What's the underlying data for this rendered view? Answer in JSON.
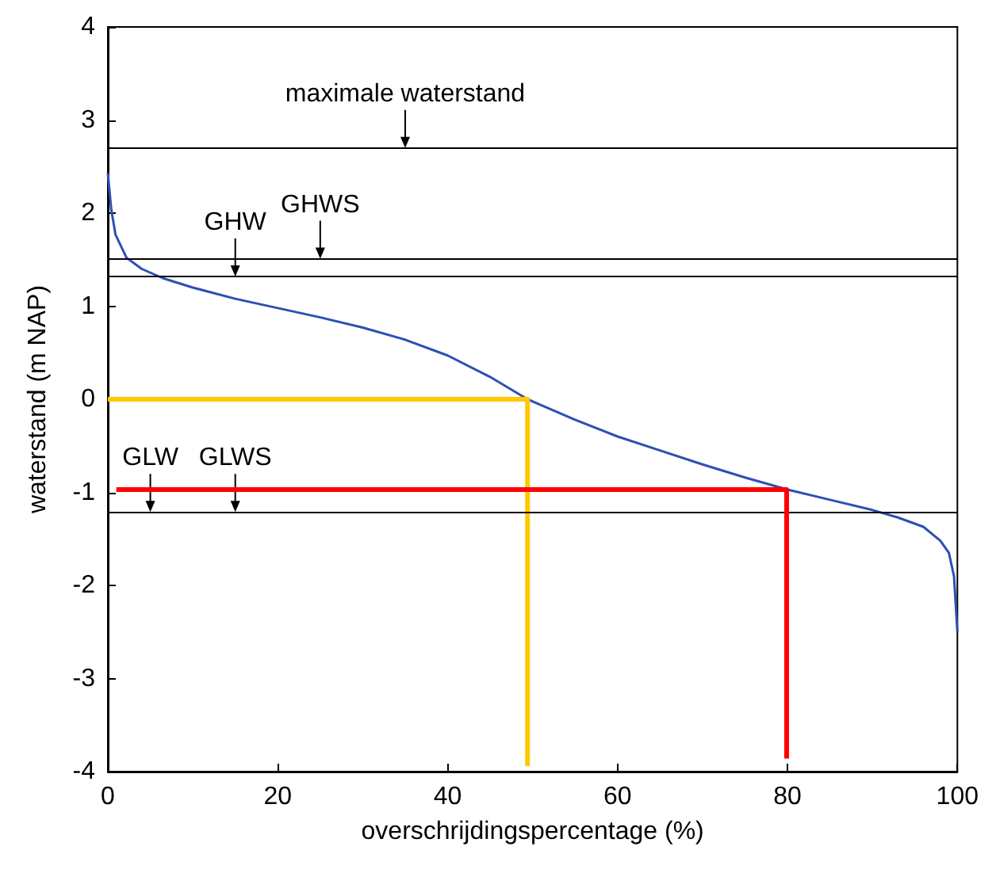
{
  "chart_data": {
    "type": "line",
    "xlabel": "overschrijdingspercentage (%)",
    "ylabel": "waterstand (m NAP)",
    "xlim": [
      0,
      100
    ],
    "xticks": [
      0,
      20,
      40,
      60,
      80,
      100
    ],
    "ylim": [
      -4,
      4
    ],
    "yticks": [
      -4,
      -3,
      -2,
      -1,
      0,
      1,
      2,
      3,
      4
    ],
    "grid": false,
    "marker": "none",
    "line_style": "solid",
    "series": [
      {
        "color": "#2d4fb4",
        "x": [
          0,
          0.4,
          0.9,
          2.2,
          4,
          6.5,
          10,
          15,
          20,
          25,
          30,
          35,
          40,
          45,
          49.4,
          55,
          60,
          65,
          70,
          75,
          80,
          85,
          90,
          93,
          96,
          98,
          99,
          99.6,
          100
        ],
        "values": [
          2.43,
          2.04,
          1.77,
          1.52,
          1.4,
          1.3,
          1.2,
          1.08,
          0.98,
          0.88,
          0.77,
          0.64,
          0.47,
          0.24,
          0.0,
          -0.22,
          -0.4,
          -0.55,
          -0.7,
          -0.84,
          -0.97,
          -1.08,
          -1.19,
          -1.27,
          -1.37,
          -1.52,
          -1.65,
          -1.9,
          -2.5
        ]
      },
      {
        "color": "#ffc800",
        "x": [
          0,
          49.4,
          49.4
        ],
        "values": [
          0,
          0,
          -3.94
        ]
      },
      {
        "color": "#ff0000",
        "x": [
          1,
          79.9,
          79.9
        ],
        "values": [
          -0.97,
          -0.97,
          -3.86
        ]
      }
    ],
    "ref_lines": [
      {
        "axis": "y",
        "value": 2.7,
        "color": "#000000"
      },
      {
        "axis": "y",
        "value": 1.51,
        "color": "#000000"
      },
      {
        "axis": "y",
        "value": 1.32,
        "color": "#000000"
      },
      {
        "axis": "y",
        "value": -1.21,
        "color": "#000000"
      }
    ],
    "annotations": [
      {
        "text": "maximale waterstand",
        "x": 35,
        "y": 2.7
      },
      {
        "text": "GHWS",
        "x": 25,
        "y": 1.51
      },
      {
        "text": "GHW",
        "x": 15,
        "y": 1.32
      },
      {
        "text": "GLW",
        "x": 5,
        "y": -1.21
      },
      {
        "text": "GLWS",
        "x": 15,
        "y": -1.21
      }
    ]
  }
}
